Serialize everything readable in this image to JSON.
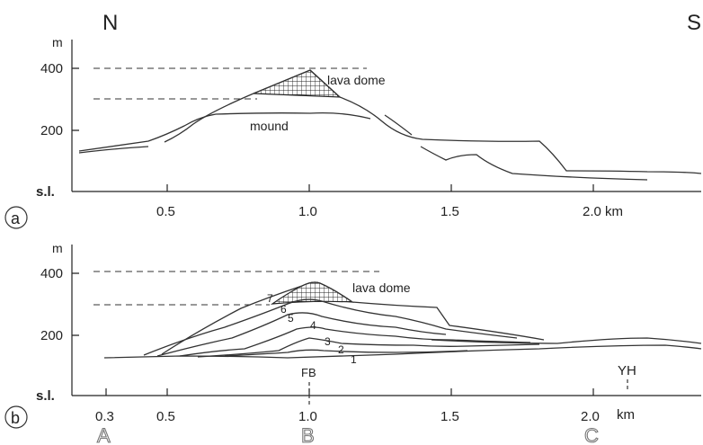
{
  "compass": {
    "north": "N",
    "south": "S"
  },
  "panel_a": {
    "label": "a",
    "unit": "m",
    "y_ticks": [
      "400",
      "200",
      "s.l."
    ],
    "x_ticks": [
      "0.5",
      "1.0",
      "1.5",
      "2.0 km"
    ],
    "annotations": {
      "dome": "lava dome",
      "mound": "mound"
    }
  },
  "panel_b": {
    "label": "b",
    "unit": "m",
    "y_ticks": [
      "400",
      "200",
      "s.l."
    ],
    "x_ticks": [
      "0.3",
      "0.5",
      "1.0",
      "1.5",
      "2.0",
      "km"
    ],
    "annotations": {
      "dome": "lava dome"
    },
    "layer_numbers": [
      "1",
      "2",
      "3",
      "4",
      "5",
      "6",
      "7"
    ],
    "site_labels": [
      "FB",
      "YH"
    ],
    "section_points": [
      "A",
      "B",
      "C"
    ]
  }
}
